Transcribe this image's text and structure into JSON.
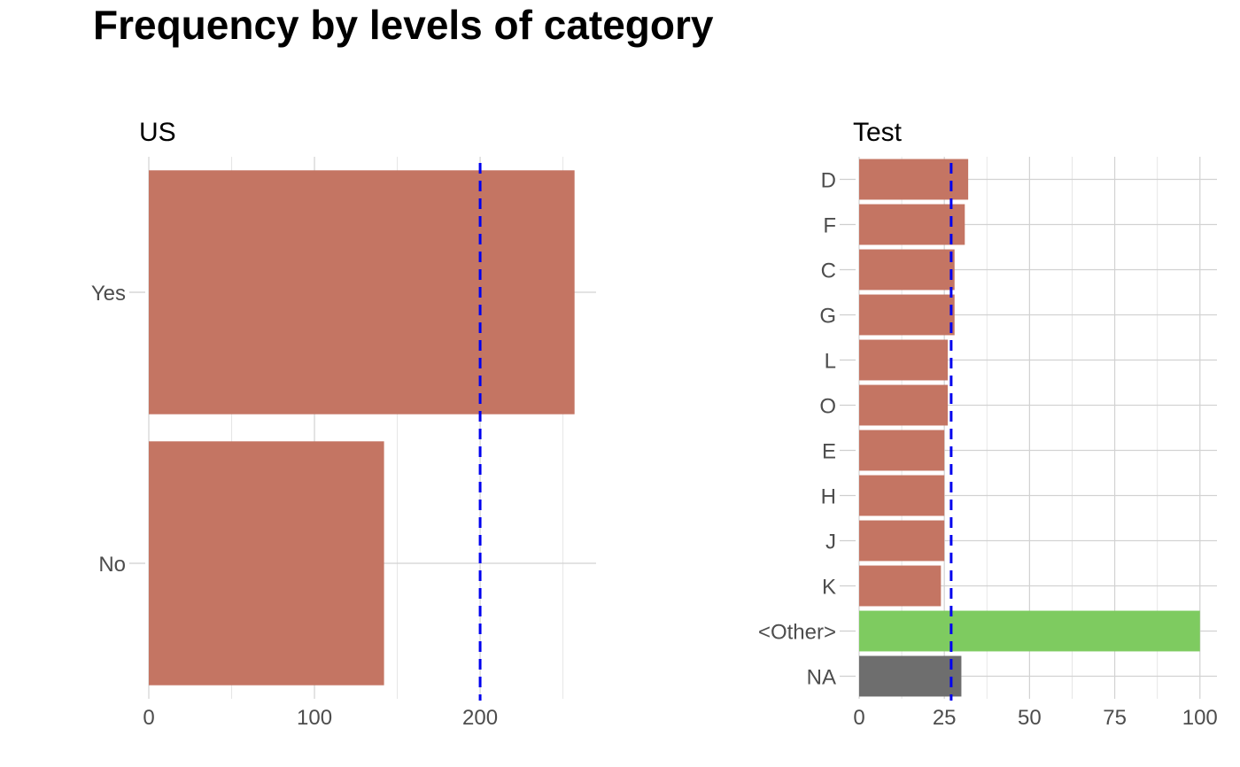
{
  "title": "Frequency by levels of category",
  "colors": {
    "bar": "#c47563",
    "other": "#7ecb60",
    "na": "#6e6e6e",
    "reference_line": "#0000ee"
  },
  "chart_data": [
    {
      "type": "bar",
      "orientation": "horizontal",
      "title": "US",
      "categories": [
        "Yes",
        "No"
      ],
      "values": [
        257,
        142
      ],
      "bar_kinds": [
        "level",
        "level"
      ],
      "xlabel": "",
      "ylabel": "",
      "xlim": [
        0,
        270
      ],
      "xticks": [
        0,
        100,
        200
      ],
      "reference_line": 200,
      "grid": true
    },
    {
      "type": "bar",
      "orientation": "horizontal",
      "title": "Test",
      "categories": [
        "D",
        "F",
        "C",
        "G",
        "L",
        "O",
        "E",
        "H",
        "J",
        "K",
        "<Other>",
        "NA"
      ],
      "values": [
        32,
        31,
        28,
        28,
        26,
        26,
        25,
        25,
        25,
        24,
        100,
        30
      ],
      "bar_kinds": [
        "level",
        "level",
        "level",
        "level",
        "level",
        "level",
        "level",
        "level",
        "level",
        "level",
        "other",
        "na"
      ],
      "xlabel": "",
      "ylabel": "",
      "xlim": [
        0,
        105
      ],
      "xticks": [
        0,
        25,
        50,
        75,
        100
      ],
      "reference_line": 27,
      "grid": true
    }
  ]
}
